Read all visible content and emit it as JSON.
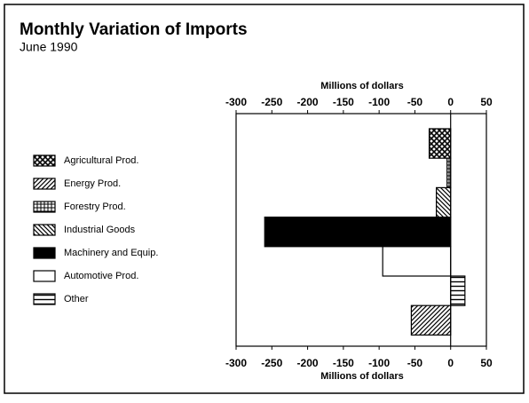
{
  "chart_data": {
    "type": "hbar",
    "title": "Monthly Variation of Imports",
    "subtitle": "June 1990",
    "xlabel": "Millions of dollars",
    "categories": [
      "Agricultural Prod.",
      "Energy Prod.",
      "Forestry Prod.",
      "Industrial Goods",
      "Machinery and Equip.",
      "Automotive Prod.",
      "Other"
    ],
    "values": [
      -30,
      -55,
      -5,
      -20,
      -260,
      -95,
      20
    ],
    "xlim": [
      -300,
      50
    ],
    "xticks": [
      -300,
      -250,
      -200,
      -150,
      -100,
      -50,
      0,
      50
    ]
  }
}
